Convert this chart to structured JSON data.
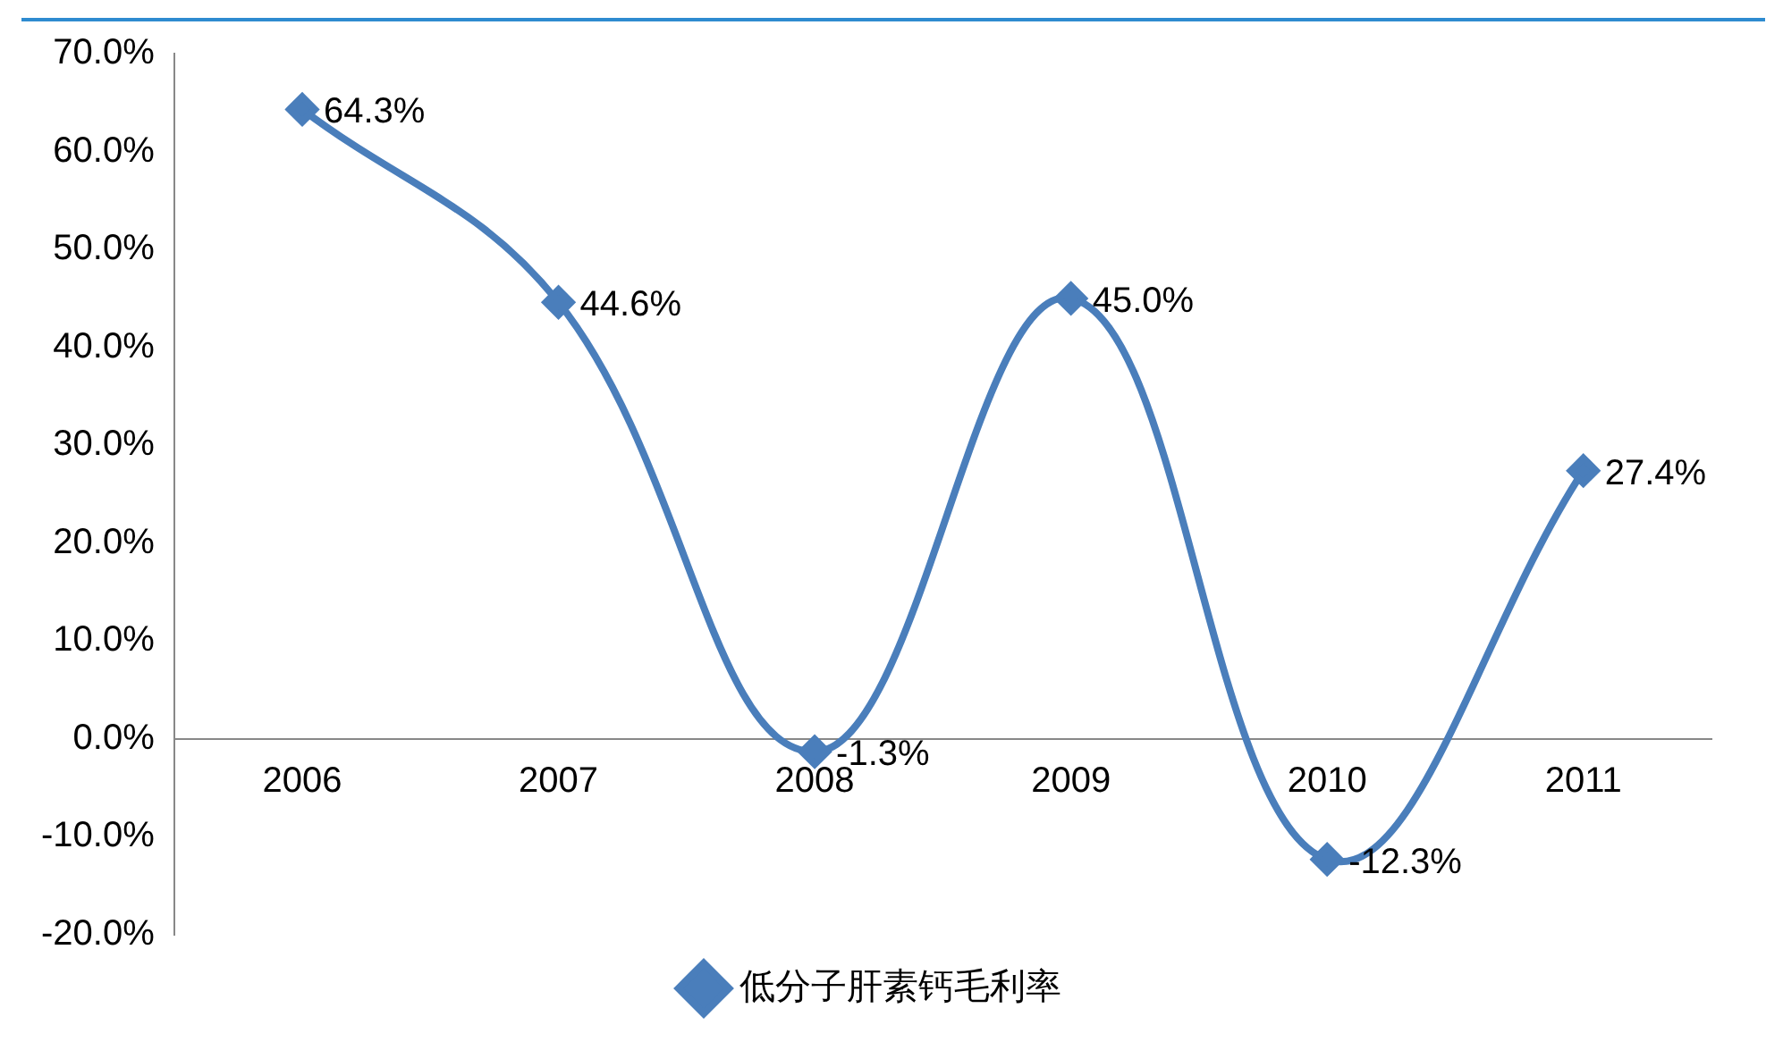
{
  "chart_data": {
    "type": "line",
    "categories": [
      "2006",
      "2007",
      "2008",
      "2009",
      "2010",
      "2011"
    ],
    "series": [
      {
        "name": "低分子肝素钙毛利率",
        "color": "#4a7ebb",
        "values": [
          64.3,
          44.6,
          -1.3,
          45.0,
          -12.3,
          27.4
        ],
        "value_labels": [
          "64.3%",
          "44.6%",
          "-1.3%",
          "45.0%",
          "-12.3%",
          "27.4%"
        ]
      }
    ],
    "ylim": [
      -20,
      70
    ],
    "yticks": [
      {
        "value": -20,
        "label": "-20.0%"
      },
      {
        "value": -10,
        "label": "-10.0%"
      },
      {
        "value": 0,
        "label": "0.0%"
      },
      {
        "value": 10,
        "label": "10.0%"
      },
      {
        "value": 20,
        "label": "20.0%"
      },
      {
        "value": 30,
        "label": "30.0%"
      },
      {
        "value": 40,
        "label": "40.0%"
      },
      {
        "value": 50,
        "label": "50.0%"
      },
      {
        "value": 60,
        "label": "60.0%"
      },
      {
        "value": 70,
        "label": "70.0%"
      }
    ],
    "grid": false,
    "legend": "bottom",
    "marker": "diamond",
    "line_style": "solid"
  }
}
